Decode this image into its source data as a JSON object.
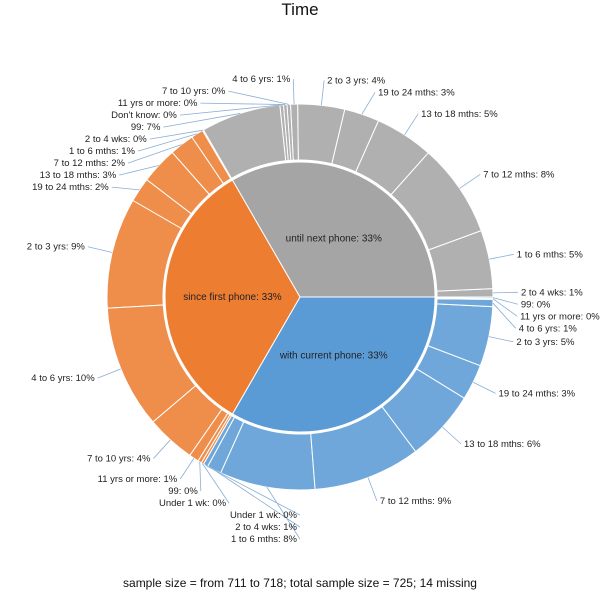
{
  "chart_data": {
    "type": "sunburst",
    "title": "Time",
    "caption": "sample size = from 711 to 718; total sample size = 725; 14 missing",
    "colors": {
      "with current phone": "#5b9bd5",
      "since first phone": "#ed7d31",
      "until next phone": "#a5a5a5"
    },
    "groups": [
      {
        "name": "with current phone",
        "label": "with current phone: 33%",
        "value": 33.3,
        "children": [
          {
            "name": "Under 1 wk",
            "label": "Under 1 wk: 0%",
            "value": 0.4
          },
          {
            "name": "2 to 4 wks",
            "label": "2 to 4 wks: 1%",
            "value": 1.2
          },
          {
            "name": "1 to 6 mths",
            "label": "1 to 6 mths: 8%",
            "value": 8.0
          },
          {
            "name": "7 to 12 mths",
            "label": "7 to 12 mths: 9%",
            "value": 9.0
          },
          {
            "name": "13 to 18 mths",
            "label": "13 to 18 mths: 6%",
            "value": 6.0
          },
          {
            "name": "19 to 24 mths",
            "label": "19 to 24 mths: 3%",
            "value": 3.0
          },
          {
            "name": "2 to 3 yrs",
            "label": "2 to 3 yrs: 5%",
            "value": 5.0
          },
          {
            "name": "4 to 6 yrs",
            "label": "4 to 6 yrs: 1%",
            "value": 0.6
          },
          {
            "name": "11 yrs or more",
            "label": "11 yrs or more: 0%",
            "value": 0.1
          },
          {
            "name": "99",
            "label": "99: 0%",
            "value": 0.1
          }
        ]
      },
      {
        "name": "since first phone",
        "label": "since first phone: 33%",
        "value": 33.3,
        "children": [
          {
            "name": "2 to 4 wks",
            "label": "2 to 4 wks: 0%",
            "value": 0.1
          },
          {
            "name": "1 to 6 mths",
            "label": "1 to 6 mths: 1%",
            "value": 1.0
          },
          {
            "name": "7 to 12 mths",
            "label": "7 to 12 mths: 2%",
            "value": 2.0
          },
          {
            "name": "13 to 18 mths",
            "label": "13 to 18 mths: 3%",
            "value": 3.0
          },
          {
            "name": "19 to 24 mths",
            "label": "19 to 24 mths: 2%",
            "value": 2.0
          },
          {
            "name": "2 to 3 yrs",
            "label": "2 to 3 yrs: 9%",
            "value": 9.0
          },
          {
            "name": "4 to 6 yrs",
            "label": "4 to 6 yrs: 10%",
            "value": 10.0
          },
          {
            "name": "7 to 10 yrs",
            "label": "7 to 10 yrs: 4%",
            "value": 4.0
          },
          {
            "name": "11 yrs or more",
            "label": "11 yrs or more: 1%",
            "value": 0.8
          },
          {
            "name": "99",
            "label": "99: 0%",
            "value": 0.3
          },
          {
            "name": "Under 1 wk",
            "label": "Under 1 wk: 0%",
            "value": 0.2
          }
        ]
      },
      {
        "name": "until next phone",
        "label": "until next phone: 33%",
        "value": 33.3,
        "children": [
          {
            "name": "2 to 4 wks",
            "label": "2 to 4 wks: 1%",
            "value": 0.7
          },
          {
            "name": "1 to 6 mths",
            "label": "1 to 6 mths: 5%",
            "value": 5.0
          },
          {
            "name": "7 to 12 mths",
            "label": "7 to 12 mths: 8%",
            "value": 8.0
          },
          {
            "name": "13 to 18 mths",
            "label": "13 to 18 mths: 5%",
            "value": 5.0
          },
          {
            "name": "19 to 24 mths",
            "label": "19 to 24 mths: 3%",
            "value": 3.0
          },
          {
            "name": "2 to 3 yrs",
            "label": "2 to 3 yrs: 4%",
            "value": 4.0
          },
          {
            "name": "4 to 6 yrs",
            "label": "4 to 6 yrs: 1%",
            "value": 0.6
          },
          {
            "name": "7 to 10 yrs",
            "label": "7 to 10 yrs: 0%",
            "value": 0.3
          },
          {
            "name": "11 yrs or more",
            "label": "11 yrs or more: 0%",
            "value": 0.3
          },
          {
            "name": "Don't know",
            "label": "Don't know: 0%",
            "value": 0.3
          },
          {
            "name": "99",
            "label": "99: 7%",
            "value": 6.8
          }
        ]
      }
    ]
  }
}
